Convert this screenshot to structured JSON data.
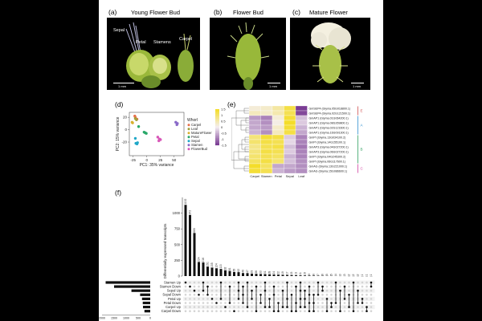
{
  "panels": {
    "a": {
      "label": "(a)",
      "title": "Young Flower Bud",
      "sepal": "Sepal",
      "petal": "Petal",
      "stamens": "Stamens",
      "carpel": "Carpel",
      "scale": "1 mm"
    },
    "b": {
      "label": "(b)",
      "title": "Flower Bud",
      "scale": "1 mm"
    },
    "c": {
      "label": "(c)",
      "title": "Mature Flower",
      "scale": "1 mm"
    },
    "d": {
      "label": "(d)"
    },
    "e": {
      "label": "(e)"
    },
    "f": {
      "label": "(f)"
    }
  },
  "colors": {
    "Carpel": "#e8704a",
    "Leaf": "#a0a03a",
    "MatureFlower": "#d8b030",
    "Petal": "#2aa86a",
    "Sepal": "#20a8c8",
    "Stamen": "#8a6ac8",
    "FlowerBud": "#d858b8",
    "heat_high": "#f4dd2a",
    "heat_low": "#7a3c94"
  },
  "chart_data": [
    {
      "type": "scatter",
      "title": "",
      "xlabel": "PC1: 35% variance",
      "ylabel": "PC2: 15% variance",
      "xlim": [
        -32,
        68
      ],
      "ylim": [
        -42,
        28
      ],
      "x_ticks": [
        "-25",
        "0",
        "25",
        "50"
      ],
      "y_ticks": [
        "20",
        "0",
        "-20"
      ],
      "legend_title": "Whorl",
      "legend_position": "right",
      "series": [
        {
          "name": "Carpel",
          "points": [
            [
              -22,
              22
            ],
            [
              -21,
              20
            ],
            [
              -18,
              17
            ]
          ]
        },
        {
          "name": "Leaf",
          "points": [
            [
              -21,
              18
            ],
            [
              -19,
              16
            ]
          ]
        },
        {
          "name": "MatureFlower",
          "points": [
            [
              -27,
              12
            ],
            [
              -26,
              11
            ]
          ]
        },
        {
          "name": "Petal",
          "points": [
            [
              -15,
              5
            ],
            [
              -5,
              -4
            ],
            [
              -3,
              -5
            ],
            [
              -1,
              -6
            ]
          ]
        },
        {
          "name": "Sepal",
          "points": [
            [
              -21,
              -14
            ],
            [
              -20,
              -22
            ],
            [
              -18,
              -23
            ],
            [
              -17,
              -21
            ]
          ]
        },
        {
          "name": "Stamen",
          "points": [
            [
              53,
              12
            ],
            [
              55,
              8
            ],
            [
              56,
              10
            ]
          ]
        },
        {
          "name": "FlowerBud",
          "points": [
            [
              20,
              -12
            ],
            [
              22,
              -18
            ],
            [
              23,
              -15
            ],
            [
              25,
              -16
            ]
          ]
        }
      ]
    },
    {
      "type": "heatmap",
      "title": "",
      "columns": [
        "Carpel",
        "Stamen",
        "Petal",
        "Sepal",
        "Leaf"
      ],
      "rows": [
        "GmSEP4 (Glyma.05G018800.1)",
        "GmSEP4 (Glyma.02G121500.1)",
        "GmAP1 (Glyma.01G064200.1)",
        "GmAP1 (Glyma.08G269800.1)",
        "GmAP1 (Glyma.02G121600.1)",
        "GmAP1 (Glyma.16G091300.1)",
        "GmPI (Glyma.13G034100.2)",
        "GmPI (Glyma.14G155100.1)",
        "GmAP3 (Glyma.04G027200.1)",
        "GmAP3 (Glyma.06G027200.1)",
        "GmPI (Glyma.04G245300.2)",
        "GmPI (Glyma.06G117600.1)",
        "GmAG (Glyma.13G221000.1)",
        "GmAG (Glyma.15G086600.1)"
      ],
      "values": [
        [
          0.2,
          0.3,
          0.6,
          1.3,
          -1.5
        ],
        [
          0.4,
          0.3,
          0.5,
          1.2,
          -1.4
        ],
        [
          -0.7,
          -0.9,
          0.2,
          1.4,
          -0.4
        ],
        [
          -0.6,
          -0.8,
          0.1,
          1.5,
          -0.3
        ],
        [
          -0.6,
          -0.7,
          0.3,
          1.4,
          -0.5
        ],
        [
          -0.5,
          -0.8,
          0.4,
          1.3,
          -0.6
        ],
        [
          0.9,
          1.4,
          1.3,
          -0.3,
          -0.9
        ],
        [
          1.0,
          1.3,
          1.2,
          -0.2,
          -0.9
        ],
        [
          0.8,
          1.2,
          1.3,
          -0.4,
          -1.0
        ],
        [
          0.9,
          1.3,
          1.2,
          -0.3,
          -0.9
        ],
        [
          1.0,
          1.2,
          1.1,
          -0.5,
          -0.9
        ],
        [
          1.1,
          1.3,
          1.0,
          -0.4,
          -0.8
        ],
        [
          1.5,
          1.1,
          -0.6,
          -0.6,
          -0.8
        ],
        [
          1.4,
          1.2,
          -0.5,
          -0.7,
          -0.8
        ]
      ],
      "scale_labels": [
        "1.5",
        "1",
        "0.5",
        "0",
        "-0.5",
        "-1",
        "-1.5"
      ],
      "groups": [
        {
          "label": "E",
          "rows": [
            0,
            1
          ]
        },
        {
          "label": "A",
          "rows": [
            2,
            5
          ]
        },
        {
          "label": "B",
          "rows": [
            6,
            11
          ]
        },
        {
          "label": "C",
          "rows": [
            12,
            13
          ]
        }
      ]
    },
    {
      "type": "bar",
      "subtype": "upset",
      "title": "",
      "ylabel": "Differentially expressed transcripts",
      "ylim": [
        0,
        1250
      ],
      "y_ticks": [
        0,
        250,
        500,
        750,
        1000
      ],
      "intersection_values": [
        1132,
        972,
        685,
        224,
        216,
        151,
        135,
        124,
        113,
        92,
        81,
        65,
        62,
        48,
        47,
        39,
        36,
        33,
        31,
        28,
        24,
        22,
        19,
        17,
        15,
        13,
        11,
        10,
        9,
        8,
        7,
        6,
        5,
        5,
        4,
        3,
        3,
        2,
        2,
        2,
        1,
        1,
        1
      ],
      "intersection_labels": [
        "1132",
        "972",
        "685",
        "224",
        "216",
        "151",
        "135",
        "124",
        "113",
        "92",
        "81",
        "65",
        "62",
        "48",
        "47",
        "39",
        "36",
        "33",
        "31",
        "28",
        "24",
        "22",
        "19",
        "17",
        "15",
        "13",
        "11",
        "10",
        "9",
        "8",
        "7",
        "6",
        "5",
        "5",
        "4",
        "3",
        "3",
        "2",
        "2",
        "2",
        "1",
        "1",
        "1"
      ],
      "sets": [
        "Stamen Up",
        "Stamen Down",
        "Sepal Up",
        "Sepal Down",
        "Petal Up",
        "Petal Down",
        "Carpel Up",
        "Carpel Down"
      ],
      "set_sizes": [
        1850,
        1500,
        780,
        420,
        340,
        310,
        300,
        240
      ],
      "set_size_xlabel": "Differentially expressed transcripts",
      "set_size_ticks": [
        "2000",
        "1500",
        "1000",
        "500",
        "0"
      ]
    }
  ]
}
